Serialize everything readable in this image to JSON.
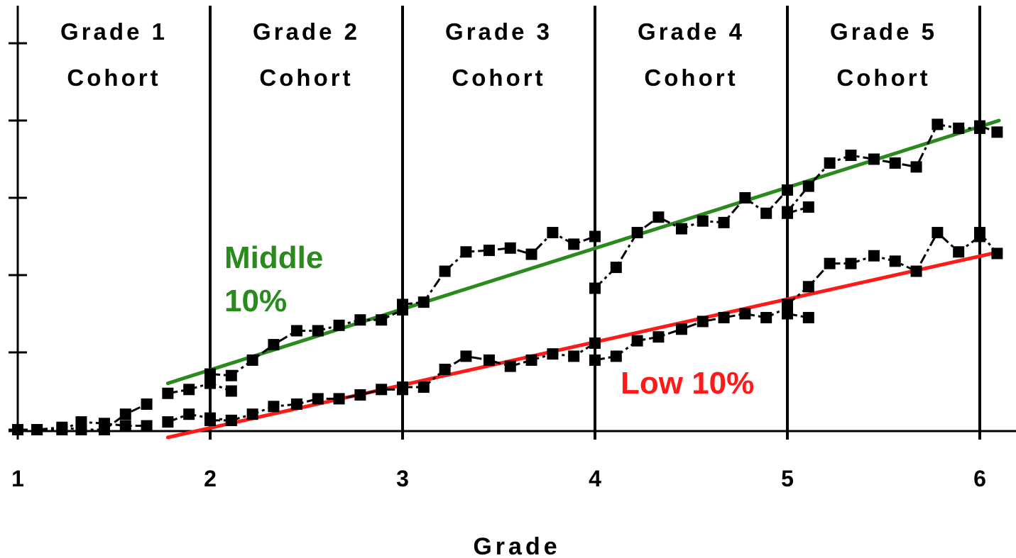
{
  "chart_data": {
    "type": "line",
    "xlabel": "Grade",
    "ylabel": "",
    "title": "",
    "xlim": [
      1,
      6.18
    ],
    "ylim": [
      0,
      5.4
    ],
    "x_ticks": [
      "1",
      "2",
      "3",
      "4",
      "5",
      "6"
    ],
    "y_tick_values": [
      0,
      1,
      2,
      3,
      4,
      5
    ],
    "grid": false,
    "cohorts": [
      {
        "line1": "Grade 1",
        "line2": "Cohort"
      },
      {
        "line1": "Grade 2",
        "line2": "Cohort"
      },
      {
        "line1": "Grade 3",
        "line2": "Cohort"
      },
      {
        "line1": "Grade 4",
        "line2": "Cohort"
      },
      {
        "line1": "Grade 5",
        "line2": "Cohort"
      }
    ],
    "cohort_boundaries": [
      2,
      3,
      4,
      5,
      6
    ],
    "colors": {
      "middle": "#2a8a1e",
      "low": "#ff1a1a",
      "observed": "#000000"
    },
    "series": [
      {
        "name": "Middle 10%",
        "kind": "trend",
        "x": [
          1.78,
          6.1
        ],
        "y": [
          0.6,
          4.0
        ]
      },
      {
        "name": "Low 10%",
        "kind": "trend",
        "x": [
          1.78,
          6.1
        ],
        "y": [
          -0.1,
          2.3
        ]
      },
      {
        "kind": "observed",
        "x": [
          1.0,
          1.1,
          1.23,
          1.33,
          1.45,
          1.56,
          1.67
        ],
        "y": [
          0.0,
          0.0,
          0.0,
          0.1,
          0.08,
          0.05,
          0.05
        ]
      },
      {
        "kind": "observed",
        "x": [
          1.0,
          1.1,
          1.23,
          1.33,
          1.45,
          1.56,
          1.67
        ],
        "y": [
          0.0,
          0.0,
          0.03,
          0.0,
          0.0,
          0.2,
          0.33
        ]
      },
      {
        "kind": "observed",
        "x": [
          1.78,
          1.89,
          2.0,
          2.11
        ],
        "y": [
          0.47,
          0.52,
          0.6,
          0.5
        ]
      },
      {
        "kind": "observed",
        "x": [
          1.78,
          1.89,
          2.0,
          2.11
        ],
        "y": [
          0.1,
          0.2,
          0.15,
          0.12
        ]
      },
      {
        "kind": "observed",
        "x": [
          2.0,
          2.11,
          2.22,
          2.33,
          2.45,
          2.56,
          2.67,
          2.78,
          2.89,
          3.0
        ],
        "y": [
          0.72,
          0.7,
          0.9,
          1.1,
          1.28,
          1.28,
          1.35,
          1.42,
          1.42,
          1.55
        ]
      },
      {
        "kind": "observed",
        "x": [
          2.0,
          2.11,
          2.22,
          2.33,
          2.45,
          2.56,
          2.67,
          2.78,
          2.89,
          3.0
        ],
        "y": [
          0.12,
          0.12,
          0.2,
          0.3,
          0.33,
          0.4,
          0.4,
          0.45,
          0.52,
          0.52
        ]
      },
      {
        "kind": "observed",
        "x": [
          3.0,
          3.11,
          3.22,
          3.33,
          3.45,
          3.56,
          3.67,
          3.78,
          3.89,
          4.0
        ],
        "y": [
          1.62,
          1.65,
          2.05,
          2.3,
          2.32,
          2.35,
          2.27,
          2.55,
          2.4,
          2.5
        ]
      },
      {
        "kind": "observed",
        "x": [
          3.0,
          3.11,
          3.22,
          3.33,
          3.45,
          3.56,
          3.67,
          3.78,
          3.89,
          4.0
        ],
        "y": [
          0.55,
          0.55,
          0.78,
          0.95,
          0.9,
          0.82,
          0.9,
          0.98,
          0.95,
          1.12
        ]
      },
      {
        "kind": "observed",
        "x": [
          4.0,
          4.11,
          4.22,
          4.33,
          4.45,
          4.56,
          4.67,
          4.78,
          4.89,
          5.0
        ],
        "y": [
          1.83,
          2.1,
          2.55,
          2.75,
          2.6,
          2.7,
          2.68,
          3.0,
          2.8,
          3.1
        ]
      },
      {
        "kind": "observed",
        "x": [
          4.0,
          4.11,
          4.22,
          4.33,
          4.45,
          4.56,
          4.67,
          4.78,
          4.89,
          5.0
        ],
        "y": [
          0.9,
          0.95,
          1.15,
          1.2,
          1.3,
          1.4,
          1.45,
          1.5,
          1.45,
          1.58
        ]
      },
      {
        "kind": "observed",
        "x": [
          5.0,
          5.11,
          5.22,
          5.33,
          5.45,
          5.56,
          5.67,
          5.78,
          5.89,
          6.0
        ],
        "y": [
          2.82,
          3.15,
          3.45,
          3.55,
          3.5,
          3.45,
          3.4,
          3.95,
          3.9,
          3.9
        ]
      },
      {
        "kind": "observed",
        "x": [
          5.0,
          5.11,
          5.22,
          5.33,
          5.45,
          5.56,
          5.67,
          5.78,
          5.89,
          6.0
        ],
        "y": [
          1.62,
          1.85,
          2.15,
          2.15,
          2.25,
          2.18,
          2.05,
          2.55,
          2.3,
          2.5
        ]
      },
      {
        "kind": "observed",
        "x": [
          5.0,
          5.11
        ],
        "y": [
          1.5,
          1.45
        ]
      },
      {
        "kind": "observed",
        "x": [
          5.0,
          5.11
        ],
        "y": [
          2.8,
          2.88
        ]
      },
      {
        "kind": "observed",
        "x": [
          6.0,
          6.09
        ],
        "y": [
          3.93,
          3.85
        ]
      },
      {
        "kind": "observed",
        "x": [
          6.0,
          6.09
        ],
        "y": [
          2.55,
          2.28
        ]
      }
    ]
  }
}
